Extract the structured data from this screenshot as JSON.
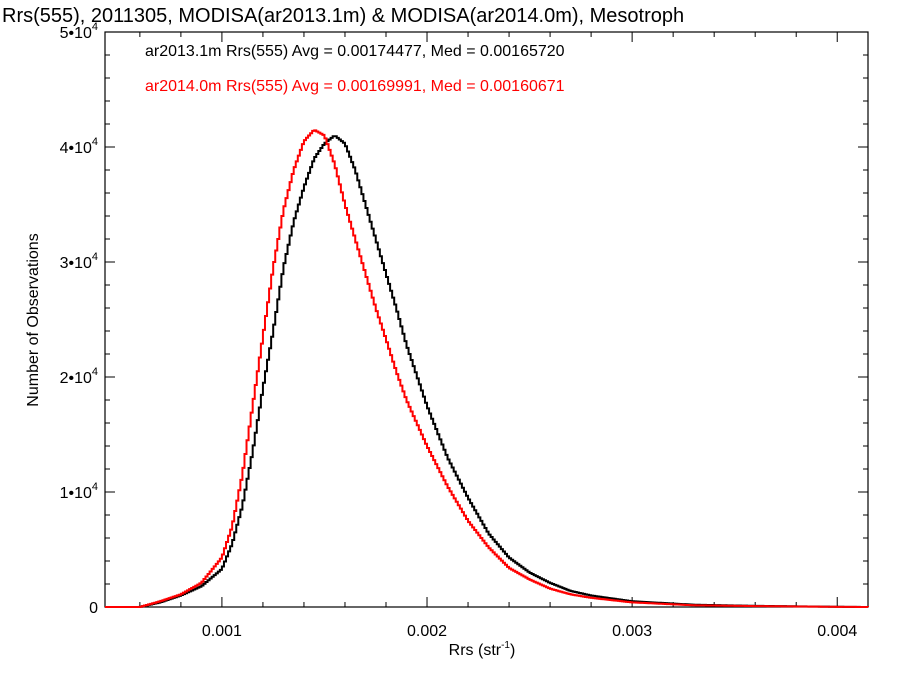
{
  "chart_data": {
    "type": "line",
    "title": "Rrs(555), 2011305, MODISA(ar2013.1m) & MODISA(ar2014.0m), Mesotroph",
    "xlabel": "Rrs (str",
    "xlabel_sup": "-1",
    "xlabel_tail": ")",
    "ylabel": "Number of Observations",
    "xlim": [
      0.00043,
      0.00415
    ],
    "ylim": [
      0,
      50000
    ],
    "grid": false,
    "legend_position": "top-left",
    "x_ticks": [
      {
        "value": 0.001,
        "label": "0.001"
      },
      {
        "value": 0.002,
        "label": "0.002"
      },
      {
        "value": 0.003,
        "label": "0.003"
      },
      {
        "value": 0.004,
        "label": "0.004"
      }
    ],
    "y_ticks": [
      {
        "value": 0,
        "label": "0"
      },
      {
        "value": 10000,
        "base": "1•10",
        "exp": "4"
      },
      {
        "value": 20000,
        "base": "2•10",
        "exp": "4"
      },
      {
        "value": 30000,
        "base": "3•10",
        "exp": "4"
      },
      {
        "value": 40000,
        "base": "4•10",
        "exp": "4"
      },
      {
        "value": 50000,
        "base": "5•10",
        "exp": "4"
      }
    ],
    "annotations": [
      {
        "text": "ar2013.1m Rrs(555) Avg = 0.00174477, Med = 0.00165720",
        "color": "#000000"
      },
      {
        "text": "ar2014.0m Rrs(555) Avg = 0.00169991, Med = 0.00160671",
        "color": "#ff0000"
      }
    ],
    "series": [
      {
        "color": "#000000",
        "x": [
          0.00043,
          0.0006,
          0.0007,
          0.0008,
          0.0009,
          0.001,
          0.00105,
          0.0011,
          0.00115,
          0.0012,
          0.00125,
          0.0013,
          0.00135,
          0.0014,
          0.00145,
          0.0015,
          0.00155,
          0.0016,
          0.00165,
          0.0017,
          0.00175,
          0.0018,
          0.00185,
          0.0019,
          0.002,
          0.0021,
          0.0022,
          0.0023,
          0.0024,
          0.0025,
          0.0026,
          0.0027,
          0.0028,
          0.003,
          0.0033,
          0.0036,
          0.004,
          0.00415
        ],
        "y": [
          0,
          0,
          400,
          1000,
          1800,
          3300,
          5500,
          8800,
          13500,
          19000,
          24000,
          29500,
          33500,
          36500,
          39000,
          40300,
          41000,
          40300,
          38000,
          35000,
          32000,
          29000,
          26000,
          22800,
          17500,
          13000,
          9500,
          6400,
          4300,
          3000,
          2100,
          1400,
          1000,
          500,
          200,
          100,
          20,
          0
        ]
      },
      {
        "color": "#ff0000",
        "x": [
          0.00043,
          0.0006,
          0.0007,
          0.0008,
          0.0009,
          0.001,
          0.00105,
          0.0011,
          0.00115,
          0.0012,
          0.00125,
          0.0013,
          0.00135,
          0.0014,
          0.00145,
          0.0015,
          0.00155,
          0.0016,
          0.00165,
          0.0017,
          0.00175,
          0.0018,
          0.00185,
          0.0019,
          0.002,
          0.0021,
          0.0022,
          0.0023,
          0.0024,
          0.0025,
          0.0026,
          0.0027,
          0.0028,
          0.003,
          0.0033,
          0.0036,
          0.004,
          0.00415
        ],
        "y": [
          0,
          0,
          500,
          1100,
          2100,
          4300,
          7000,
          11500,
          17500,
          23500,
          29500,
          34500,
          38000,
          40500,
          41500,
          41000,
          38500,
          35000,
          32000,
          29000,
          26000,
          23300,
          20500,
          18000,
          14000,
          10500,
          7500,
          5200,
          3400,
          2400,
          1600,
          1100,
          800,
          400,
          150,
          80,
          15,
          0
        ]
      }
    ]
  }
}
